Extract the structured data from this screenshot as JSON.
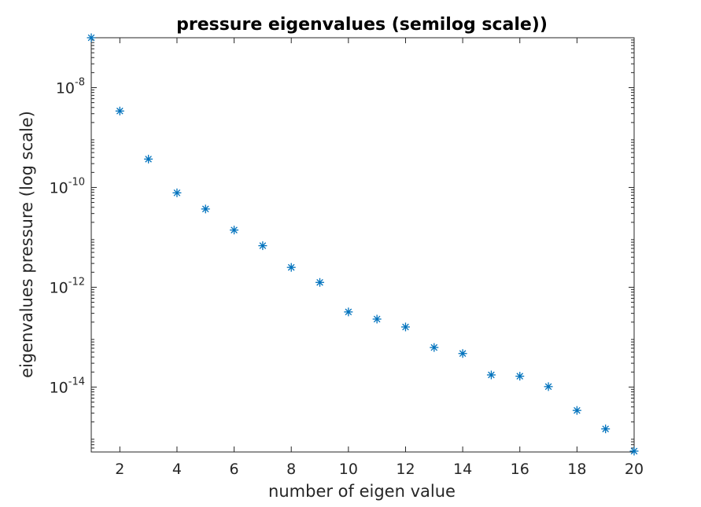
{
  "chart_data": {
    "type": "scatter",
    "title": "pressure eigenvalues (semilog scale))",
    "xlabel": "number of eigen value",
    "ylabel": "eigenvalues pressure (log scale)",
    "xlim": [
      1,
      20
    ],
    "ylim": [
      5e-16,
      1e-07
    ],
    "yscale": "log",
    "grid": false,
    "legend": "none",
    "marker": "asterisk",
    "color": "#0072BD",
    "x_ticks": [
      {
        "value": 2,
        "label": "2"
      },
      {
        "value": 4,
        "label": "4"
      },
      {
        "value": 6,
        "label": "6"
      },
      {
        "value": 8,
        "label": "8"
      },
      {
        "value": 10,
        "label": "10"
      },
      {
        "value": 12,
        "label": "12"
      },
      {
        "value": 14,
        "label": "14"
      },
      {
        "value": 16,
        "label": "16"
      },
      {
        "value": 18,
        "label": "18"
      },
      {
        "value": 20,
        "label": "20"
      }
    ],
    "y_ticks": [
      {
        "value": 1e-14,
        "base": "10",
        "exponent": "-14"
      },
      {
        "value": 1e-12,
        "base": "10",
        "exponent": "-12"
      },
      {
        "value": 1e-10,
        "base": "10",
        "exponent": "-10"
      },
      {
        "value": 1e-08,
        "base": "10",
        "exponent": "-8"
      }
    ],
    "x": [
      1,
      2,
      3,
      4,
      5,
      6,
      7,
      8,
      9,
      10,
      11,
      12,
      13,
      14,
      15,
      16,
      17,
      18,
      19,
      20
    ],
    "y": [
      1e-07,
      3.4e-09,
      3.7e-10,
      7.8e-11,
      3.7e-11,
      1.4e-11,
      6.8e-12,
      2.5e-12,
      1.25e-12,
      3.2e-13,
      2.3e-13,
      1.6e-13,
      6.2e-14,
      4.7e-14,
      1.75e-14,
      1.65e-14,
      1.02e-14,
      3.4e-15,
      1.45e-15,
      5.2e-16
    ]
  }
}
